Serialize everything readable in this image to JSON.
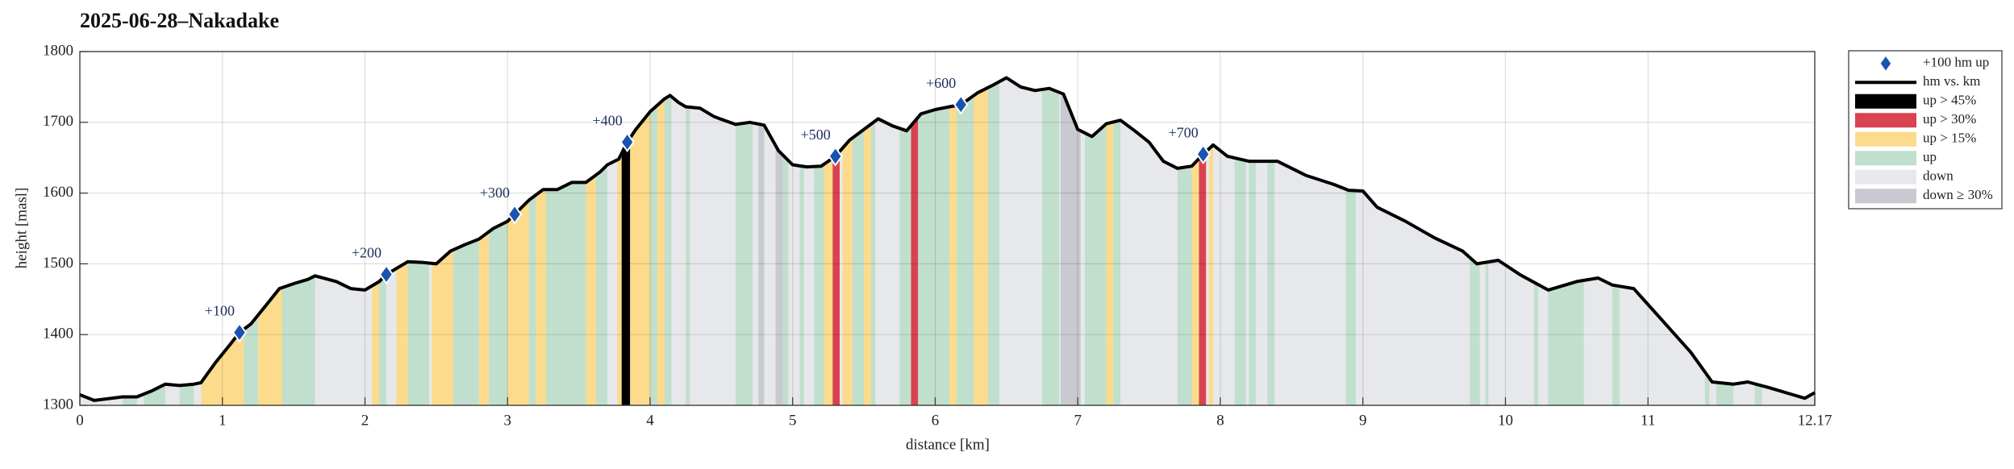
{
  "chart_data": {
    "type": "line",
    "title": "2025-06-28–Nakadake",
    "x_label": "distance [km]",
    "y_label": "height [masl]",
    "xlim": [
      0,
      12.17
    ],
    "ylim": [
      1300,
      1800
    ],
    "xticks": [
      0,
      1,
      2,
      3,
      4,
      5,
      6,
      7,
      8,
      9,
      10,
      11,
      12.17
    ],
    "yticks": [
      1300,
      1400,
      1500,
      1600,
      1700,
      1800
    ],
    "grid": true,
    "legend": "outside-right",
    "series": [
      {
        "name": "hm vs. km",
        "color": "#000000",
        "x": [
          0,
          0.1,
          0.3,
          0.4,
          0.5,
          0.6,
          0.7,
          0.8,
          0.85,
          0.95,
          1.05,
          1.12,
          1.2,
          1.3,
          1.4,
          1.5,
          1.6,
          1.65,
          1.8,
          1.9,
          2.0,
          2.1,
          2.15,
          2.3,
          2.4,
          2.5,
          2.6,
          2.7,
          2.8,
          2.9,
          3.0,
          3.05,
          3.15,
          3.25,
          3.35,
          3.45,
          3.55,
          3.65,
          3.7,
          3.78,
          3.84,
          3.9,
          4.0,
          4.1,
          4.14,
          4.2,
          4.25,
          4.35,
          4.45,
          4.6,
          4.7,
          4.8,
          4.9,
          5.0,
          5.1,
          5.2,
          5.3,
          5.4,
          5.5,
          5.6,
          5.7,
          5.8,
          5.9,
          6.0,
          6.1,
          6.18,
          6.3,
          6.4,
          6.5,
          6.6,
          6.7,
          6.8,
          6.9,
          7.0,
          7.1,
          7.2,
          7.3,
          7.4,
          7.5,
          7.6,
          7.7,
          7.8,
          7.88,
          7.95,
          8.05,
          8.2,
          8.4,
          8.6,
          8.8,
          8.9,
          9.0,
          9.1,
          9.3,
          9.5,
          9.7,
          9.8,
          9.95,
          10.1,
          10.3,
          10.5,
          10.65,
          10.75,
          10.9,
          11.1,
          11.3,
          11.45,
          11.6,
          11.7,
          11.85,
          12.0,
          12.1,
          12.17
        ],
        "values": [
          1315,
          1307,
          1312,
          1312,
          1320,
          1330,
          1328,
          1330,
          1332,
          1360,
          1385,
          1403,
          1415,
          1440,
          1465,
          1472,
          1478,
          1483,
          1475,
          1465,
          1463,
          1475,
          1485,
          1503,
          1502,
          1500,
          1518,
          1527,
          1535,
          1550,
          1560,
          1570,
          1590,
          1605,
          1605,
          1615,
          1615,
          1630,
          1640,
          1648,
          1672,
          1690,
          1715,
          1733,
          1738,
          1728,
          1722,
          1720,
          1708,
          1697,
          1700,
          1696,
          1660,
          1640,
          1637,
          1638,
          1652,
          1675,
          1690,
          1705,
          1695,
          1688,
          1712,
          1718,
          1722,
          1725,
          1742,
          1752,
          1763,
          1750,
          1745,
          1748,
          1740,
          1690,
          1680,
          1698,
          1703,
          1688,
          1672,
          1645,
          1635,
          1638,
          1655,
          1668,
          1652,
          1645,
          1645,
          1625,
          1612,
          1604,
          1603,
          1580,
          1560,
          1537,
          1518,
          1500,
          1505,
          1485,
          1463,
          1475,
          1480,
          1470,
          1465,
          1420,
          1375,
          1333,
          1330,
          1333,
          1325,
          1316,
          1310,
          1318
        ]
      }
    ],
    "markers": {
      "name": "+100 hm up",
      "color": "#1a53b0",
      "x": [
        1.12,
        2.15,
        3.05,
        3.84,
        5.3,
        6.18,
        7.88
      ],
      "values": [
        1403,
        1485,
        1570,
        1672,
        1652,
        1725,
        1655
      ],
      "labels": [
        "+100",
        "+200",
        "+300",
        "+400",
        "+500",
        "+600",
        "+700"
      ]
    },
    "bands": [
      {
        "name": "up > 45%",
        "color": "#000000",
        "ranges": [
          [
            3.8,
            3.86
          ]
        ]
      },
      {
        "name": "up > 30%",
        "color": "#d9424f",
        "ranges": [
          [
            5.28,
            5.33
          ],
          [
            5.83,
            5.88
          ],
          [
            7.85,
            7.9
          ]
        ]
      },
      {
        "name": "up > 15%",
        "color": "#fcdb8c",
        "ranges": [
          [
            0.85,
            1.15
          ],
          [
            1.25,
            1.42
          ],
          [
            2.05,
            2.1
          ],
          [
            2.22,
            2.3
          ],
          [
            2.47,
            2.62
          ],
          [
            2.8,
            2.87
          ],
          [
            3.0,
            3.15
          ],
          [
            3.2,
            3.27
          ],
          [
            3.55,
            3.62
          ],
          [
            3.77,
            3.8
          ],
          [
            3.86,
            4.0
          ],
          [
            4.05,
            4.1
          ],
          [
            5.22,
            5.28
          ],
          [
            5.35,
            5.42
          ],
          [
            5.5,
            5.55
          ],
          [
            6.1,
            6.15
          ],
          [
            6.27,
            6.37
          ],
          [
            7.2,
            7.25
          ],
          [
            7.8,
            7.85
          ],
          [
            7.92,
            7.95
          ]
        ]
      },
      {
        "name": "up",
        "color": "#c1dfcd",
        "ranges": [
          [
            0.3,
            0.4
          ],
          [
            0.45,
            0.6
          ],
          [
            0.7,
            0.8
          ],
          [
            1.15,
            1.25
          ],
          [
            1.42,
            1.65
          ],
          [
            2.1,
            2.15
          ],
          [
            2.3,
            2.45
          ],
          [
            2.62,
            2.8
          ],
          [
            2.87,
            3.0
          ],
          [
            3.15,
            3.2
          ],
          [
            3.27,
            3.55
          ],
          [
            3.62,
            3.7
          ],
          [
            4.0,
            4.05
          ],
          [
            4.1,
            4.15
          ],
          [
            4.25,
            4.28
          ],
          [
            4.6,
            4.72
          ],
          [
            4.93,
            4.97
          ],
          [
            5.05,
            5.08
          ],
          [
            5.15,
            5.22
          ],
          [
            5.42,
            5.5
          ],
          [
            5.55,
            5.58
          ],
          [
            5.75,
            5.83
          ],
          [
            5.88,
            6.1
          ],
          [
            6.15,
            6.27
          ],
          [
            6.37,
            6.45
          ],
          [
            6.75,
            6.87
          ],
          [
            7.05,
            7.2
          ],
          [
            7.25,
            7.3
          ],
          [
            7.7,
            7.8
          ],
          [
            8.1,
            8.18
          ],
          [
            8.2,
            8.25
          ],
          [
            8.33,
            8.38
          ],
          [
            8.88,
            8.95
          ],
          [
            9.75,
            9.82
          ],
          [
            9.86,
            9.88
          ],
          [
            10.2,
            10.23
          ],
          [
            10.3,
            10.55
          ],
          [
            10.75,
            10.8
          ],
          [
            11.4,
            11.43
          ],
          [
            11.48,
            11.6
          ],
          [
            11.75,
            11.8
          ]
        ]
      },
      {
        "name": "down",
        "color": "#e7e8eb"
      },
      {
        "name": "down ≥ 30%",
        "color": "#c8c9d1",
        "ranges": [
          [
            4.76,
            4.8
          ],
          [
            4.88,
            4.93
          ],
          [
            6.88,
            7.02
          ]
        ]
      }
    ]
  }
}
